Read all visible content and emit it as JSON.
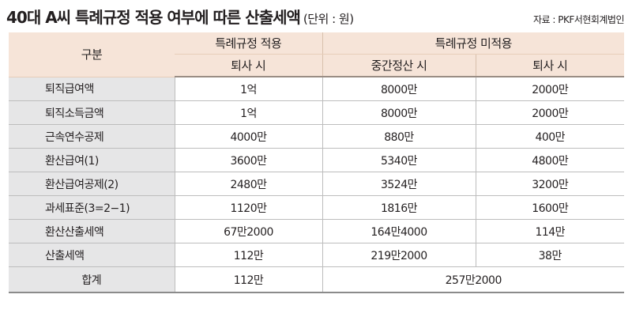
{
  "header": {
    "title": "40대 A씨 특례규정 적용 여부에 따른 산출세액",
    "unit": "(단위 : 원)",
    "source": "자료 : PKF서현회계법인"
  },
  "columns": {
    "row_header": "구분",
    "group_applied": "특례규정 적용",
    "group_not_applied": "특례규정 미적용",
    "applied_retire": "퇴사 시",
    "interim_settlement": "중간정산 시",
    "not_applied_retire": "퇴사 시"
  },
  "rows": [
    {
      "label": "퇴직급여액",
      "applied": "1억",
      "interim": "8000만",
      "retire": "2000만"
    },
    {
      "label": "퇴직소득금액",
      "applied": "1억",
      "interim": "8000만",
      "retire": "2000만"
    },
    {
      "label": "근속연수공제",
      "applied": "4000만",
      "interim": "880만",
      "retire": "400만"
    },
    {
      "label": "환산급여(1)",
      "applied": "3600만",
      "interim": "5340만",
      "retire": "4800만"
    },
    {
      "label": "환산급여공제(2)",
      "applied": "2480만",
      "interim": "3524만",
      "retire": "3200만"
    },
    {
      "label": "과세표준(3=2−1)",
      "applied": "1120만",
      "interim": "1816만",
      "retire": "1600만"
    },
    {
      "label": "환산산출세액",
      "applied": "67만2000",
      "interim": "164만4000",
      "retire": "114만"
    },
    {
      "label": "산출세액",
      "applied": "112만",
      "interim": "219만2000",
      "retire": "38만"
    }
  ],
  "total": {
    "label": "합계",
    "applied": "112만",
    "not_applied": "257만2000"
  },
  "colors": {
    "header_bg": "#f6e4d8",
    "label_bg": "#e6e6e7",
    "rule": "#bdbdbd"
  }
}
